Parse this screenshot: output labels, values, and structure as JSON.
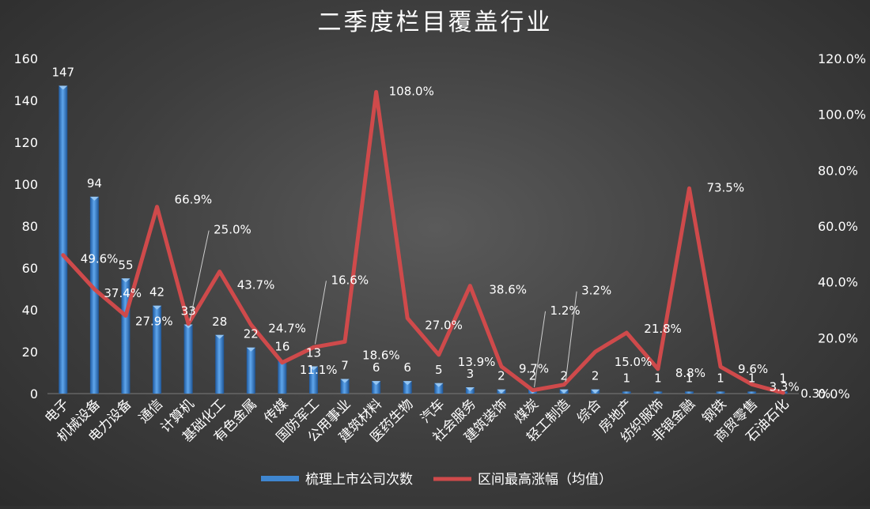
{
  "chart_data": {
    "type": "bar",
    "title": "二季度栏目覆盖行业",
    "categories": [
      "电子",
      "机械设备",
      "电力设备",
      "通信",
      "计算机",
      "基础化工",
      "有色金属",
      "传媒",
      "国防军工",
      "公用事业",
      "建筑材料",
      "医药生物",
      "汽车",
      "社会服务",
      "建筑装饰",
      "煤炭",
      "轻工制造",
      "综合",
      "房地产",
      "纺织服饰",
      "非银金融",
      "钢铁",
      "商贸零售",
      "石油石化"
    ],
    "series": [
      {
        "name": "梳理上市公司次数",
        "axis": "left",
        "values": [
          147,
          94,
          55,
          42,
          33,
          28,
          22,
          16,
          13,
          7,
          6,
          6,
          5,
          3,
          2,
          2,
          2,
          2,
          1,
          1,
          1,
          1,
          1,
          1
        ],
        "labels": [
          "147",
          "94",
          "55",
          "42",
          "33",
          "28",
          "22",
          "16",
          "13",
          "7",
          "6",
          "6",
          "5",
          "3",
          "2",
          "2",
          "2",
          "2",
          "1",
          "1",
          "1",
          "1",
          "1",
          "1"
        ]
      },
      {
        "name": "区间最高涨幅（均值）",
        "axis": "right",
        "values": [
          49.6,
          37.4,
          27.9,
          66.9,
          25.0,
          43.7,
          24.7,
          11.1,
          16.6,
          18.6,
          108.0,
          27.0,
          13.9,
          38.6,
          9.7,
          1.2,
          3.2,
          15.0,
          21.8,
          8.8,
          73.5,
          9.6,
          3.3,
          0.3
        ],
        "labels": [
          "49.6%",
          "37.4%",
          "27.9%",
          "66.9%",
          "25.0%",
          "43.7%",
          "24.7%",
          "11.1%",
          "16.6%",
          "18.6%",
          "108.0%",
          "27.0%",
          "13.9%",
          "38.6%",
          "9.7%",
          "1.2%",
          "3.2%",
          "15.0%",
          "21.8%",
          "8.8%",
          "73.5%",
          "9.6%",
          "3.3%",
          "0.3%"
        ]
      }
    ],
    "y_left": {
      "range": [
        0,
        160
      ],
      "ticks": [
        "0",
        "20",
        "40",
        "60",
        "80",
        "100",
        "120",
        "140",
        "160"
      ]
    },
    "y_right": {
      "range": [
        0,
        120
      ],
      "ticks": [
        "0.0%",
        "20.0%",
        "40.0%",
        "60.0%",
        "80.0%",
        "100.0%",
        "120.0%"
      ]
    },
    "grid": false,
    "legend_position": "bottom",
    "colors": {
      "bar": "#3f86d0",
      "line": "#cf4a4b",
      "text": "#ffffff"
    }
  }
}
